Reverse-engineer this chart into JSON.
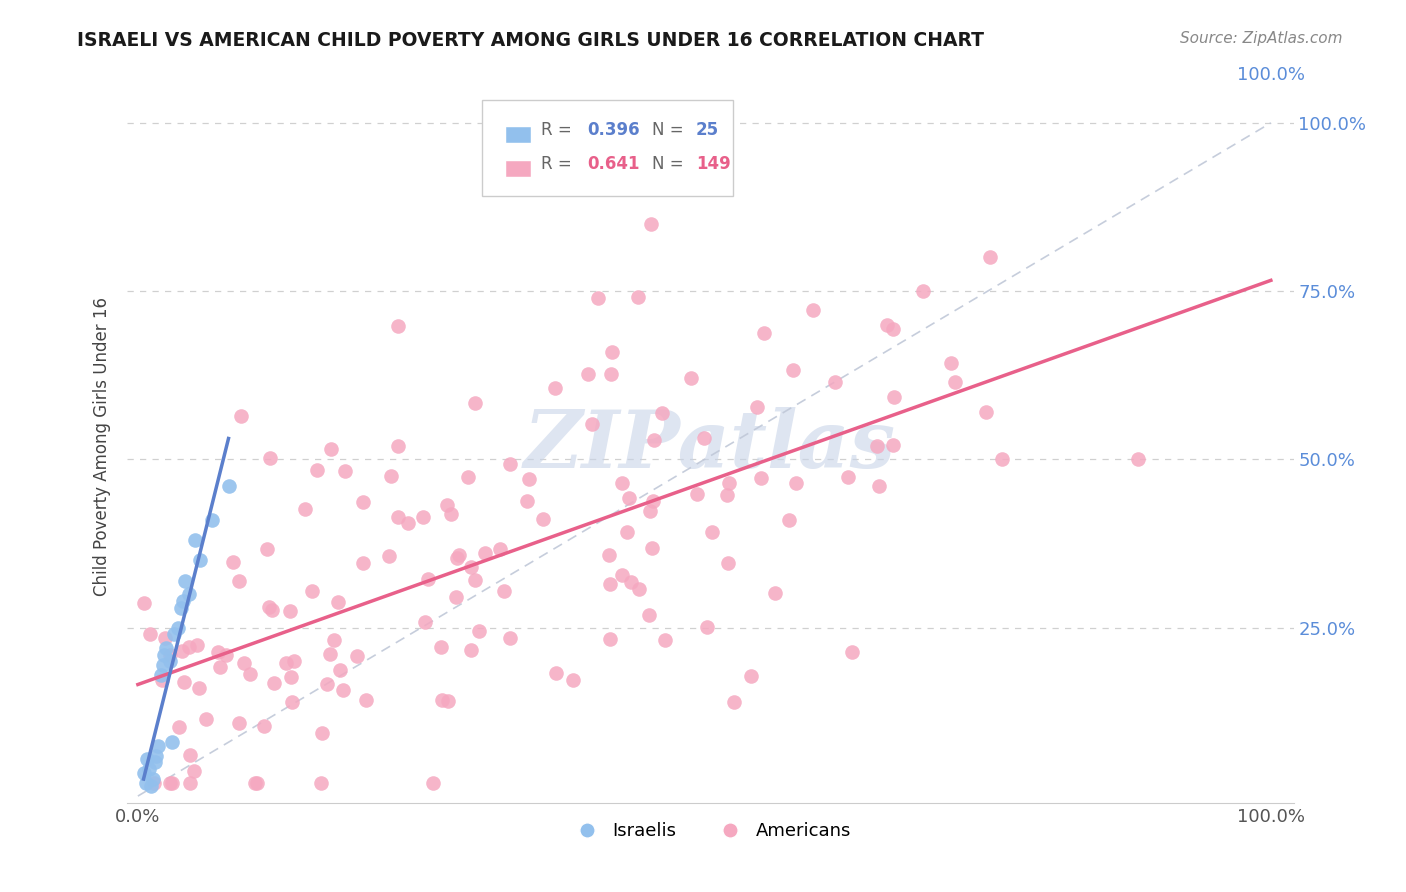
{
  "title": "ISRAELI VS AMERICAN CHILD POVERTY AMONG GIRLS UNDER 16 CORRELATION CHART",
  "source": "Source: ZipAtlas.com",
  "ylabel": "Child Poverty Among Girls Under 16",
  "israelis_R": 0.396,
  "israelis_N": 25,
  "americans_R": 0.641,
  "americans_N": 149,
  "israeli_color": "#92c0ed",
  "american_color": "#f5a8c0",
  "israeli_line_color": "#5b7fcc",
  "american_line_color": "#e8608a",
  "diagonal_color": "#c0c8d8",
  "watermark": "ZIPatlas",
  "watermark_color": "#c8d4e8",
  "tick_label_color": "#5b8dd9",
  "title_color": "#1a1a1a",
  "source_color": "#888888"
}
